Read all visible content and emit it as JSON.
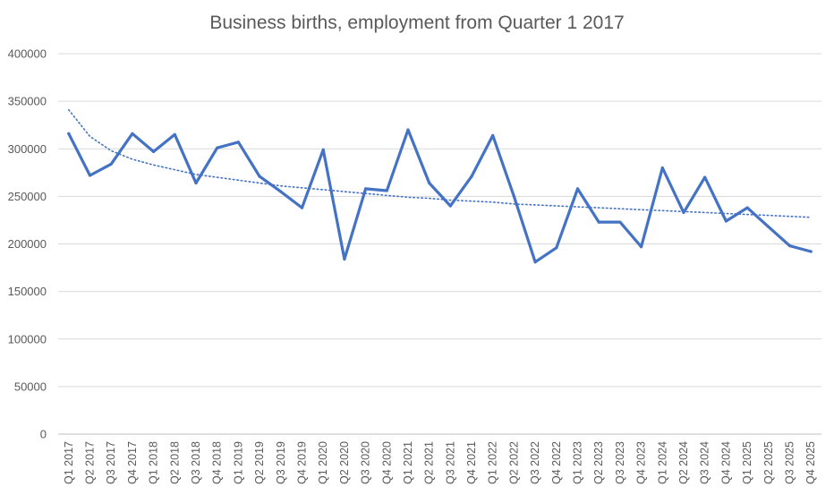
{
  "chart_data": {
    "type": "line",
    "title": "Business births, employment from Quarter 1 2017",
    "xlabel": "",
    "ylabel": "",
    "ylim": [
      0,
      400000
    ],
    "yticks": [
      0,
      50000,
      100000,
      150000,
      200000,
      250000,
      300000,
      350000,
      400000
    ],
    "grid": true,
    "legend": "none",
    "categories": [
      "Q1 2017",
      "Q2 2017",
      "Q3 2017",
      "Q4 2017",
      "Q1 2018",
      "Q2 2018",
      "Q3 2018",
      "Q4 2018",
      "Q1 2019",
      "Q2 2019",
      "Q3 2019",
      "Q4 2019",
      "Q1 2020",
      "Q2 2020",
      "Q3 2020",
      "Q4 2020",
      "Q1 2021",
      "Q2 2021",
      "Q3 2021",
      "Q4 2021",
      "Q1 2022",
      "Q2 2022",
      "Q3 2022",
      "Q4 2022",
      "Q1 2023",
      "Q2 2023",
      "Q3 2023",
      "Q4 2023",
      "Q1 2024",
      "Q2 2024",
      "Q3 2024",
      "Q4 2024",
      "Q1 2025",
      "Q2 2025",
      "Q3 2025",
      "Q4 2025"
    ],
    "series": [
      {
        "values": [
          316000,
          272000,
          284000,
          316000,
          297000,
          315000,
          264000,
          301000,
          307000,
          271000,
          255000,
          238000,
          299000,
          184000,
          258000,
          256000,
          320000,
          264000,
          240000,
          271000,
          314000,
          250000,
          181000,
          196000,
          258000,
          223000,
          223000,
          197000,
          280000,
          233000,
          270000,
          224000,
          238000,
          218000,
          198000,
          192000
        ],
        "color": "#4472C4"
      }
    ],
    "trendline": {
      "style": "dotted",
      "kind": "logarithmic",
      "color": "#4472C4",
      "values": [
        341000,
        313000,
        298000,
        289000,
        283000,
        278000,
        273000,
        270000,
        267000,
        264000,
        261000,
        259000,
        257000,
        255000,
        253000,
        251000,
        249000,
        248000,
        246000,
        245000,
        244000,
        242000,
        241000,
        240000,
        239000,
        238000,
        237000,
        236000,
        235000,
        234000,
        233000,
        232000,
        231000,
        230000,
        229000,
        228000
      ]
    }
  }
}
